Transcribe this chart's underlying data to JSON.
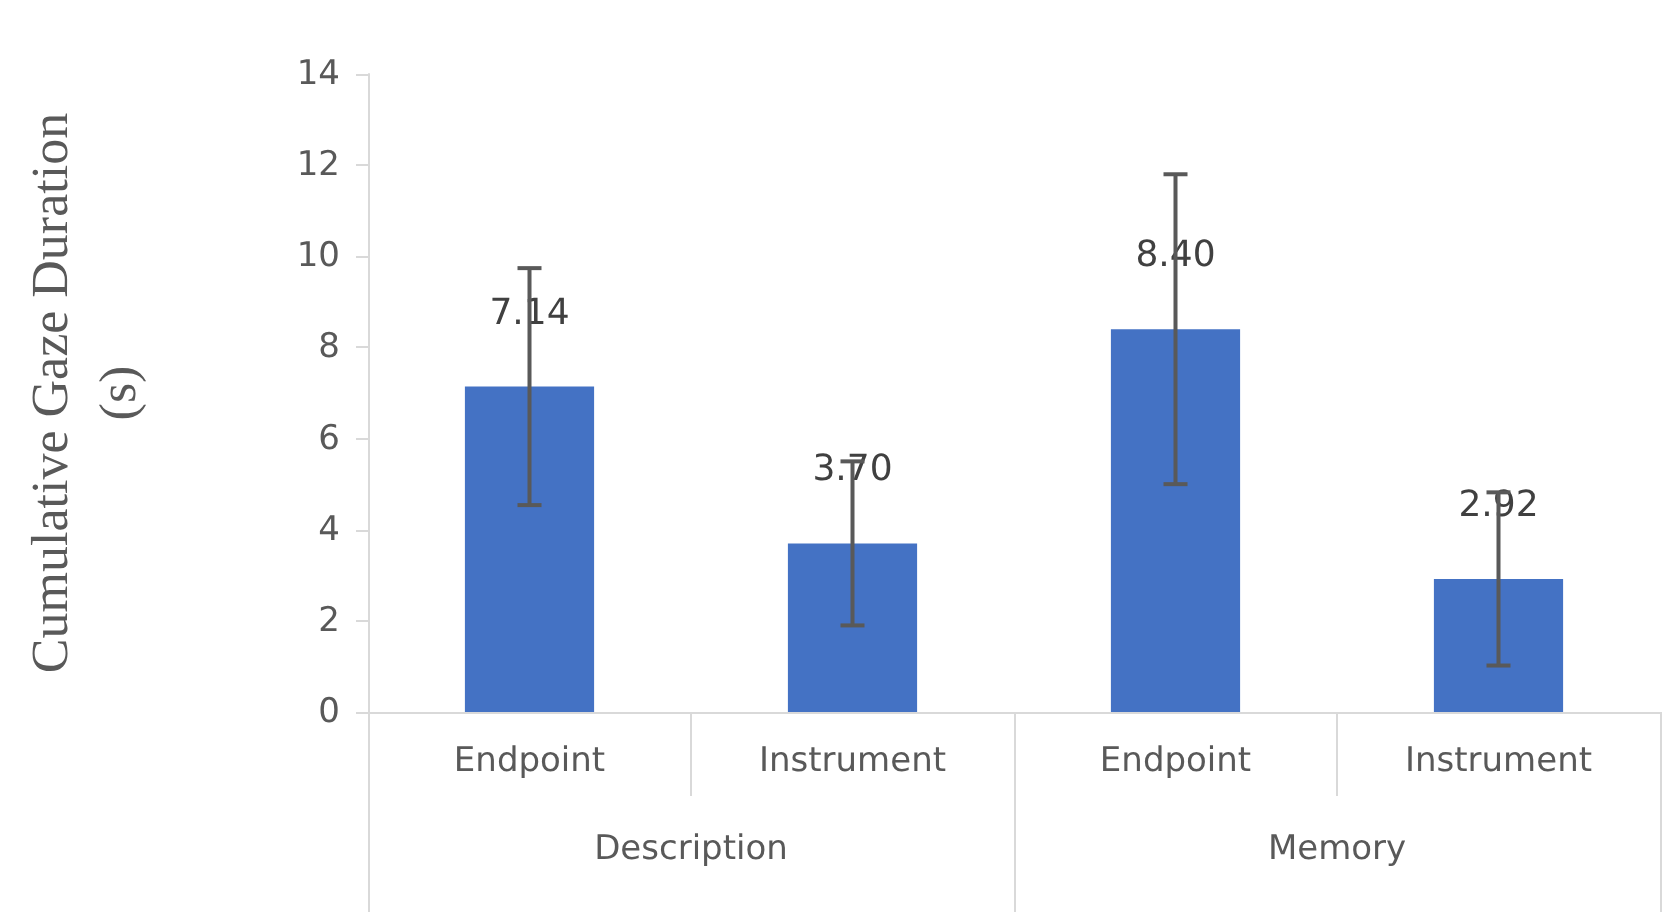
{
  "chart_data": {
    "type": "bar",
    "ylabel": "Cumulative Gaze Duration\n(s)",
    "categories": [
      "Endpoint",
      "Instrument",
      "Endpoint",
      "Instrument"
    ],
    "values": [
      7.14,
      3.7,
      8.4,
      2.92
    ],
    "errors": [
      2.6,
      1.8,
      3.4,
      1.9
    ],
    "color": "#4472c4",
    "value_labels": [
      "7.14",
      "3.70",
      "8.40",
      "2.92"
    ],
    "annotations": [
      "Description",
      "Memory"
    ],
    "ylim": [
      0,
      14
    ],
    "yticks": [
      0,
      2,
      4,
      6,
      8,
      10,
      12,
      14
    ],
    "grid": false
  }
}
